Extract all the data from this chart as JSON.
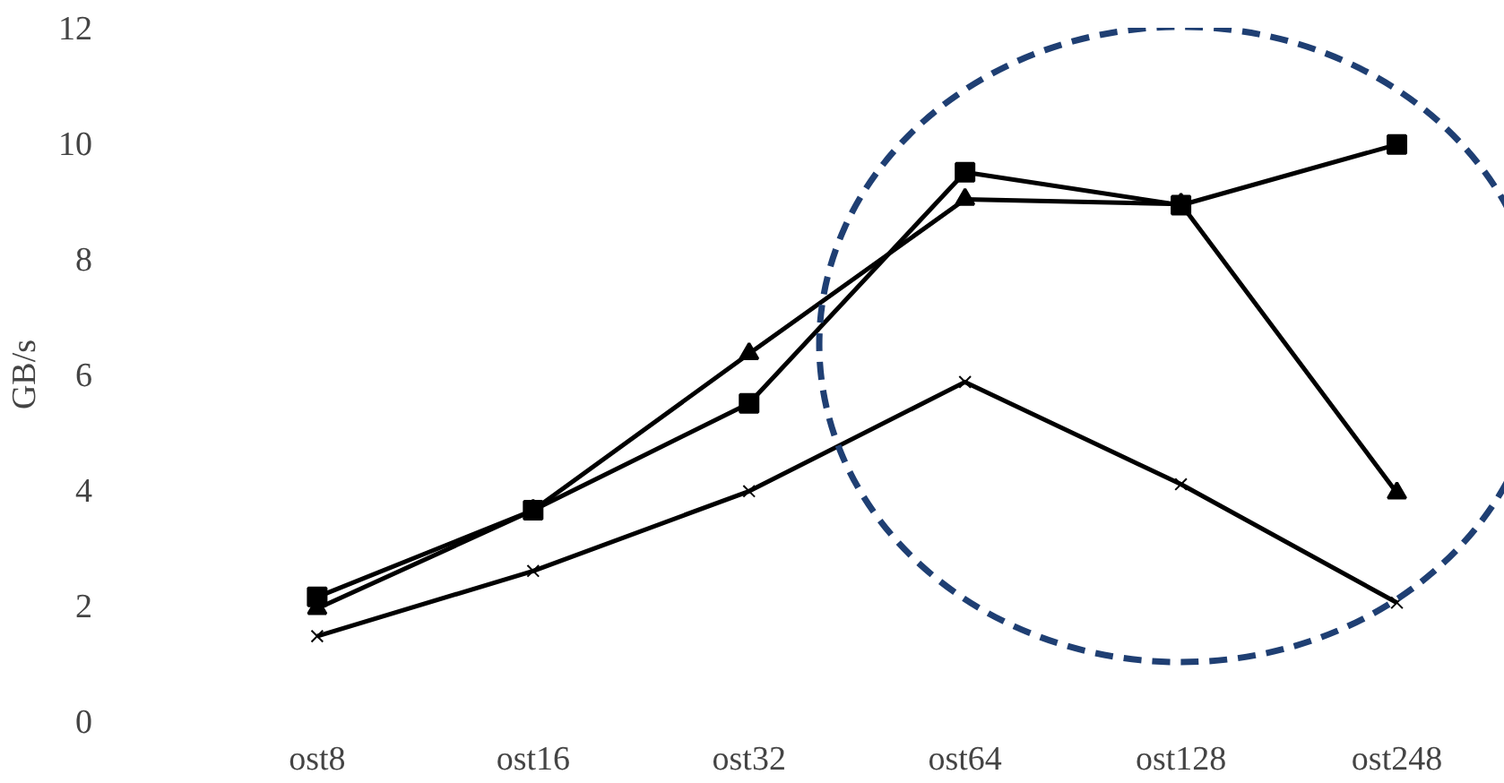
{
  "chart_data": {
    "type": "line",
    "ylabel": "GB/s",
    "categories": [
      "ost8",
      "ost16",
      "ost32",
      "ost64",
      "ost128",
      "ost248"
    ],
    "series": [
      {
        "color": "#000000",
        "marker": "square",
        "values": [
          2.15,
          3.65,
          5.5,
          9.5,
          8.93,
          9.98
        ]
      },
      {
        "color": "#000000",
        "marker": "triangle",
        "values": [
          1.95,
          3.65,
          6.36,
          9.03,
          8.95,
          3.95
        ]
      },
      {
        "color": "#000000",
        "marker": "cross",
        "values": [
          1.47,
          2.6,
          3.98,
          5.87,
          4.1,
          2.05
        ]
      }
    ],
    "ylim": [
      0,
      12
    ],
    "yticks": [
      0,
      2,
      4,
      6,
      8,
      10,
      12
    ],
    "grid": false
  }
}
